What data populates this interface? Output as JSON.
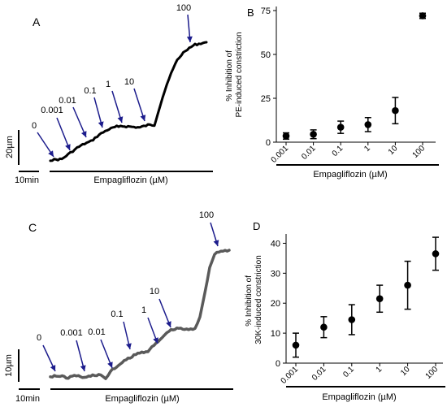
{
  "panels": {
    "a": {
      "letter": "A"
    },
    "b": {
      "letter": "B"
    },
    "c": {
      "letter": "C"
    },
    "d": {
      "letter": "D"
    }
  },
  "colors": {
    "arrow": "#1c1c8c",
    "trace_a": "#000000",
    "trace_c": "#5a5a5a",
    "points": "#000000"
  },
  "chart_data": [
    {
      "panel": "A",
      "type": "line",
      "description_kind": "vessel tension trace with cumulative dose arrows",
      "xlabel": "Empagliflozin (µM)",
      "arrow_labels": [
        "0",
        "0.001",
        "0.01",
        "0.1",
        "1",
        "10",
        "100"
      ],
      "scale_bar": {
        "vertical": "20µm",
        "horizontal": "10min"
      }
    },
    {
      "panel": "B",
      "type": "scatter",
      "xscale": "log",
      "x": [
        "0.001",
        "0.01",
        "0.1",
        "1",
        "10",
        "100"
      ],
      "series": [
        {
          "values": [
            3.5,
            4.5,
            8.5,
            10,
            18,
            72
          ],
          "errors": [
            1.8,
            2.5,
            3.5,
            4,
            7.5,
            1.5
          ]
        }
      ],
      "xlabel": "Empagliflozin (µM)",
      "ylabel": "% Inhibition of\nPE-induced constriction",
      "ylim": [
        0,
        75
      ],
      "yticks": [
        0,
        25,
        50,
        75
      ],
      "grid": false
    },
    {
      "panel": "C",
      "type": "line",
      "description_kind": "vessel tension trace with cumulative dose arrows",
      "xlabel": "Empagliflozin (µM)",
      "arrow_labels": [
        "0",
        "0.001",
        "0.01",
        "0.1",
        "1",
        "10",
        "100"
      ],
      "scale_bar": {
        "vertical": "10µm",
        "horizontal": "10min"
      }
    },
    {
      "panel": "D",
      "type": "scatter",
      "xscale": "log",
      "x": [
        "0.001",
        "0.01",
        "0.1",
        "1",
        "10",
        "100"
      ],
      "series": [
        {
          "values": [
            6,
            12,
            14.5,
            21.5,
            26,
            36.5
          ],
          "errors": [
            4,
            3.5,
            5,
            4.5,
            8,
            5.5
          ]
        }
      ],
      "xlabel": "Empagliflozin (µM)",
      "ylabel": "% Inhibition of\n30K-induced constriction",
      "ylim": [
        0,
        45
      ],
      "yticks": [
        0,
        10,
        20,
        30,
        40
      ],
      "grid": false
    }
  ]
}
